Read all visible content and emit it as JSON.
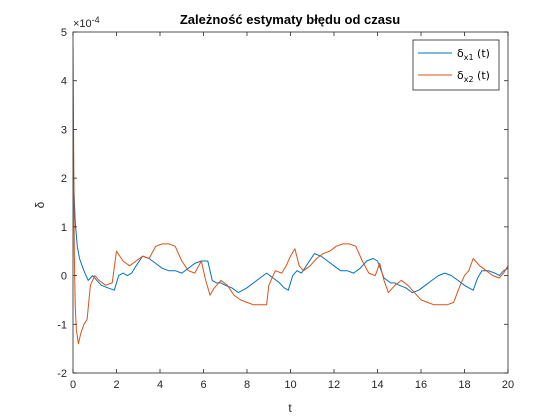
{
  "chart_data": {
    "type": "line",
    "title": "Zależność estymaty błędu od czasu",
    "xlabel": "t",
    "ylabel": "δ",
    "xlim": [
      0,
      20
    ],
    "ylim": [
      -2,
      5
    ],
    "y_exponent_label": "×10",
    "y_exponent_value": "-4",
    "x_ticks": [
      0,
      2,
      4,
      6,
      8,
      10,
      12,
      14,
      16,
      18,
      20
    ],
    "y_ticks": [
      -2,
      -1,
      0,
      1,
      2,
      3,
      4,
      5
    ],
    "grid": false,
    "legend_placement": "top-right",
    "colors": {
      "x1": "#0072BD",
      "x2": "#D95319"
    },
    "series": [
      {
        "key": "x1",
        "legend_base": "δ",
        "legend_sub": "x1",
        "legend_suffix": " (t)",
        "color": "#0072BD",
        "x": [
          0,
          0.05,
          0.1,
          0.2,
          0.3,
          0.5,
          0.7,
          0.9,
          1.1,
          1.3,
          1.6,
          1.9,
          2.1,
          2.3,
          2.5,
          2.7,
          2.9,
          3.2,
          3.5,
          3.8,
          4.1,
          4.4,
          4.7,
          5.0,
          5.3,
          5.6,
          5.9,
          6.2,
          6.4,
          6.6,
          6.8,
          7.0,
          7.3,
          7.6,
          7.8,
          8.0,
          8.3,
          8.6,
          8.9,
          9.2,
          9.5,
          9.7,
          9.9,
          10.1,
          10.3,
          10.5,
          10.8,
          11.1,
          11.4,
          11.7,
          12.0,
          12.3,
          12.6,
          12.9,
          13.2,
          13.5,
          13.8,
          14.0,
          14.3,
          14.6,
          14.8,
          15.0,
          15.3,
          15.6,
          15.9,
          16.2,
          16.5,
          16.8,
          17.1,
          17.4,
          17.7,
          18.0,
          18.2,
          18.4,
          18.6,
          18.8,
          19.1,
          19.4,
          19.6,
          19.8,
          20.0
        ],
        "y": [
          2.5,
          1.7,
          1.1,
          0.6,
          0.35,
          0.1,
          -0.1,
          0.0,
          -0.1,
          -0.2,
          -0.25,
          -0.3,
          0.0,
          0.05,
          0.0,
          0.05,
          0.2,
          0.4,
          0.35,
          0.25,
          0.15,
          0.1,
          0.1,
          0.05,
          0.15,
          0.25,
          0.3,
          0.3,
          -0.1,
          -0.15,
          -0.15,
          -0.2,
          -0.25,
          -0.35,
          -0.3,
          -0.25,
          -0.15,
          -0.05,
          0.05,
          -0.05,
          -0.15,
          -0.25,
          -0.3,
          0.0,
          0.1,
          0.05,
          0.25,
          0.45,
          0.4,
          0.3,
          0.2,
          0.1,
          0.1,
          0.05,
          0.15,
          0.3,
          0.35,
          0.3,
          -0.05,
          -0.15,
          -0.15,
          -0.2,
          -0.25,
          -0.35,
          -0.3,
          -0.2,
          -0.1,
          0.0,
          0.05,
          0.0,
          -0.1,
          -0.2,
          -0.25,
          -0.3,
          -0.05,
          0.1,
          0.1,
          0.05,
          0.0,
          0.1,
          0.15
        ]
      },
      {
        "key": "x2",
        "legend_base": "δ",
        "legend_sub": "x2",
        "legend_suffix": " (t)",
        "color": "#D95319",
        "x": [
          0,
          0.03,
          0.06,
          0.1,
          0.15,
          0.25,
          0.35,
          0.5,
          0.65,
          0.8,
          0.9,
          1.0,
          1.2,
          1.5,
          1.8,
          2.0,
          2.3,
          2.6,
          2.9,
          3.2,
          3.5,
          3.8,
          4.1,
          4.4,
          4.7,
          5.0,
          5.3,
          5.6,
          5.9,
          6.1,
          6.3,
          6.5,
          6.8,
          7.1,
          7.4,
          7.7,
          8.0,
          8.3,
          8.6,
          8.9,
          9.0,
          9.3,
          9.6,
          9.8,
          10.0,
          10.2,
          10.4,
          10.6,
          10.9,
          11.2,
          11.5,
          11.8,
          12.1,
          12.4,
          12.7,
          13.0,
          13.3,
          13.6,
          13.9,
          14.1,
          14.3,
          14.5,
          14.8,
          15.1,
          15.4,
          15.7,
          16.0,
          16.3,
          16.6,
          16.9,
          17.2,
          17.5,
          17.8,
          18.0,
          18.2,
          18.4,
          18.7,
          19.0,
          19.3,
          19.6,
          19.8,
          20.0
        ],
        "y": [
          4.7,
          2.5,
          0.5,
          -0.6,
          -1.1,
          -1.4,
          -1.2,
          -1.0,
          -0.9,
          -0.2,
          -0.1,
          0.0,
          -0.1,
          -0.2,
          -0.15,
          0.5,
          0.3,
          0.2,
          0.3,
          0.4,
          0.35,
          0.6,
          0.65,
          0.65,
          0.6,
          0.3,
          0.1,
          0.05,
          0.3,
          -0.1,
          -0.4,
          -0.25,
          -0.1,
          -0.2,
          -0.4,
          -0.5,
          -0.55,
          -0.6,
          -0.6,
          -0.6,
          -0.2,
          0.1,
          0.05,
          0.2,
          0.4,
          0.55,
          0.2,
          0.1,
          0.2,
          0.35,
          0.45,
          0.5,
          0.6,
          0.65,
          0.65,
          0.6,
          0.3,
          0.05,
          0.0,
          0.25,
          -0.1,
          -0.35,
          -0.2,
          -0.1,
          -0.2,
          -0.35,
          -0.5,
          -0.55,
          -0.6,
          -0.6,
          -0.6,
          -0.55,
          -0.2,
          0.0,
          0.1,
          0.35,
          0.2,
          0.1,
          0.0,
          -0.05,
          0.05,
          0.2
        ]
      }
    ]
  }
}
